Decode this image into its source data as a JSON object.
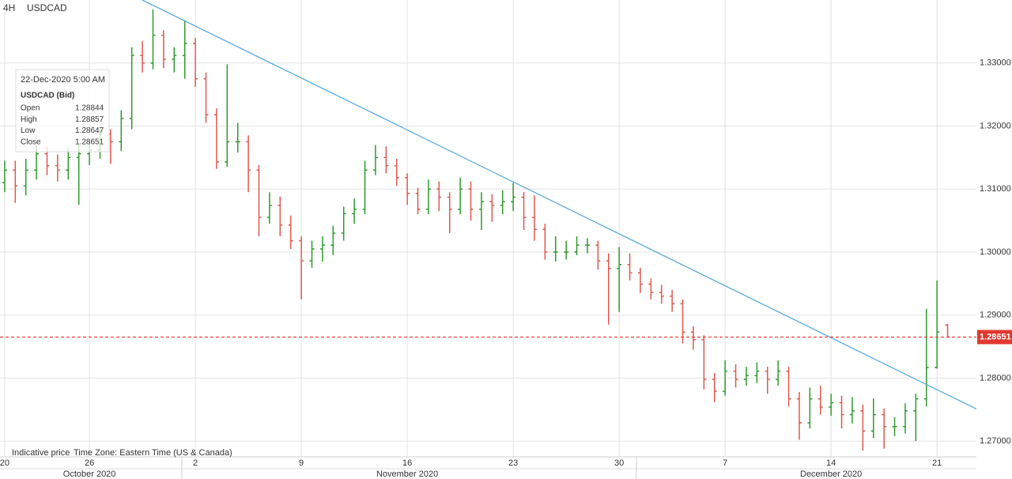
{
  "header": {
    "timeframe": "4H",
    "symbol": "USDCAD"
  },
  "tooltip": {
    "date": "22-Dec-2020 5:00 AM",
    "title": "USDCAD (Bid)",
    "rows": [
      {
        "label": "Open",
        "value": 1.28844
      },
      {
        "label": "High",
        "value": 1.28857
      },
      {
        "label": "Low",
        "value": 1.28647
      },
      {
        "label": "Close",
        "value": 1.28651
      }
    ]
  },
  "footer": {
    "note": "Indicative price",
    "timezone": "Time Zone: Eastern Time (US & Canada)"
  },
  "chart_data": {
    "type": "ohlc",
    "x": [
      0,
      0.5,
      1,
      1.5,
      2,
      2.5,
      3,
      3.5,
      4,
      4.5,
      5,
      5.5,
      6,
      6.5,
      7,
      7.5,
      8,
      8.5,
      9,
      9.5,
      10,
      10.5,
      11,
      11.5,
      12,
      12.5,
      13,
      13.5,
      14,
      14.5,
      15,
      15.5,
      16,
      16.5,
      17,
      17.5,
      18,
      18.5,
      19,
      19.5,
      20,
      20.5,
      21,
      21.5,
      22,
      22.5,
      23,
      23.5,
      24,
      24.5,
      25,
      25.5,
      26,
      26.5,
      27,
      27.5,
      28,
      28.5,
      29,
      29.5,
      30,
      30.5,
      31,
      31.5,
      32,
      32.5,
      33,
      33.5,
      34,
      34.5,
      35,
      35.5,
      36,
      36.5,
      37,
      37.5,
      38,
      38.5,
      39,
      39.5,
      40,
      40.5,
      41,
      41.5,
      42,
      42.5,
      43,
      43.5,
      44,
      44.5
    ],
    "ohlc": [
      [
        1.311,
        1.3145,
        1.3095,
        1.313
      ],
      [
        1.313,
        1.3145,
        1.3078,
        1.3105
      ],
      [
        1.3105,
        1.3148,
        1.309,
        1.313
      ],
      [
        1.313,
        1.317,
        1.3115,
        1.3156
      ],
      [
        1.3156,
        1.3168,
        1.3122,
        1.3137
      ],
      [
        1.3137,
        1.3155,
        1.3112,
        1.313
      ],
      [
        1.313,
        1.3165,
        1.3115,
        1.315
      ],
      [
        1.315,
        1.3172,
        1.3075,
        1.3156
      ],
      [
        1.3156,
        1.3178,
        1.3138,
        1.3162
      ],
      [
        1.3162,
        1.3198,
        1.3148,
        1.3187
      ],
      [
        1.3187,
        1.3195,
        1.314,
        1.3175
      ],
      [
        1.3175,
        1.3225,
        1.316,
        1.3212
      ],
      [
        1.3212,
        1.3325,
        1.3195,
        1.3312
      ],
      [
        1.3312,
        1.3335,
        1.3285,
        1.33
      ],
      [
        1.33,
        1.3385,
        1.329,
        1.3344
      ],
      [
        1.3344,
        1.3352,
        1.3292,
        1.3306
      ],
      [
        1.3306,
        1.3325,
        1.3285,
        1.3312
      ],
      [
        1.3312,
        1.3368,
        1.3275,
        1.3331
      ],
      [
        1.3331,
        1.334,
        1.3262,
        1.3275
      ],
      [
        1.3275,
        1.3285,
        1.3205,
        1.3218
      ],
      [
        1.3218,
        1.3228,
        1.3132,
        1.3143
      ],
      [
        1.3143,
        1.3298,
        1.3135,
        1.3175
      ],
      [
        1.3175,
        1.3205,
        1.3158,
        1.3175
      ],
      [
        1.3175,
        1.3185,
        1.3095,
        1.313
      ],
      [
        1.313,
        1.3138,
        1.3025,
        1.3055
      ],
      [
        1.3055,
        1.3095,
        1.3045,
        1.3074
      ],
      [
        1.3074,
        1.3088,
        1.3025,
        1.3043
      ],
      [
        1.3043,
        1.3058,
        1.3005,
        1.3018
      ],
      [
        1.3018,
        1.3025,
        1.2925,
        1.2986
      ],
      [
        1.2986,
        1.3018,
        1.2975,
        1.3005
      ],
      [
        1.3005,
        1.3025,
        1.2985,
        1.3011
      ],
      [
        1.3011,
        1.3042,
        1.2995,
        1.303
      ],
      [
        1.303,
        1.3072,
        1.3018,
        1.3061
      ],
      [
        1.3061,
        1.3085,
        1.3045,
        1.3068
      ],
      [
        1.3068,
        1.3145,
        1.306,
        1.313
      ],
      [
        1.313,
        1.317,
        1.3122,
        1.315
      ],
      [
        1.315,
        1.3168,
        1.3125,
        1.3137
      ],
      [
        1.3137,
        1.3148,
        1.3105,
        1.3118
      ],
      [
        1.3118,
        1.3125,
        1.3075,
        1.3093
      ],
      [
        1.3093,
        1.3102,
        1.306,
        1.3068
      ],
      [
        1.3068,
        1.3115,
        1.306,
        1.31
      ],
      [
        1.31,
        1.3112,
        1.3065,
        1.3087
      ],
      [
        1.3087,
        1.3095,
        1.303,
        1.3068
      ],
      [
        1.3068,
        1.3118,
        1.306,
        1.31
      ],
      [
        1.31,
        1.3112,
        1.305,
        1.3068
      ],
      [
        1.3068,
        1.3095,
        1.3035,
        1.308
      ],
      [
        1.308,
        1.3092,
        1.3048,
        1.3074
      ],
      [
        1.3074,
        1.3098,
        1.306,
        1.308
      ],
      [
        1.308,
        1.311,
        1.3065,
        1.3087
      ],
      [
        1.3087,
        1.3095,
        1.3035,
        1.3055
      ],
      [
        1.3055,
        1.309,
        1.3018,
        1.3036
      ],
      [
        1.3036,
        1.3045,
        1.2988,
        1.3
      ],
      [
        1.3,
        1.3025,
        1.2985,
        1.3
      ],
      [
        1.3,
        1.3018,
        1.2988,
        1.3
      ],
      [
        1.3,
        1.3025,
        1.2995,
        1.3011
      ],
      [
        1.3011,
        1.3022,
        1.2998,
        1.3011
      ],
      [
        1.3011,
        1.3018,
        1.2972,
        1.2986
      ],
      [
        1.2986,
        1.2998,
        1.2885,
        1.2974
      ],
      [
        1.2974,
        1.3008,
        1.2905,
        1.298
      ],
      [
        1.298,
        1.2998,
        1.2955,
        1.2967
      ],
      [
        1.2967,
        1.2975,
        1.2935,
        1.2949
      ],
      [
        1.2949,
        1.2958,
        1.2925,
        1.2936
      ],
      [
        1.2936,
        1.2948,
        1.2918,
        1.293
      ],
      [
        1.293,
        1.294,
        1.2905,
        1.2918
      ],
      [
        1.2918,
        1.2925,
        1.2855,
        1.2873
      ],
      [
        1.2873,
        1.2882,
        1.2845,
        1.2861
      ],
      [
        1.2861,
        1.2868,
        1.2782,
        1.2798
      ],
      [
        1.2798,
        1.2808,
        1.2762,
        1.2779
      ],
      [
        1.2779,
        1.2828,
        1.2772,
        1.2811
      ],
      [
        1.2811,
        1.2822,
        1.2785,
        1.2798
      ],
      [
        1.2798,
        1.2818,
        1.2788,
        1.2804
      ],
      [
        1.2804,
        1.2825,
        1.2792,
        1.2811
      ],
      [
        1.2811,
        1.2818,
        1.2775,
        1.2798
      ],
      [
        1.2798,
        1.2828,
        1.2788,
        1.2811
      ],
      [
        1.2811,
        1.2818,
        1.2755,
        1.2767
      ],
      [
        1.2767,
        1.2778,
        1.2702,
        1.2729
      ],
      [
        1.2729,
        1.2785,
        1.272,
        1.2767
      ],
      [
        1.2767,
        1.2788,
        1.2742,
        1.2754
      ],
      [
        1.2754,
        1.2775,
        1.274,
        1.2761
      ],
      [
        1.2761,
        1.2772,
        1.272,
        1.2742
      ],
      [
        1.2742,
        1.277,
        1.2728,
        1.2748
      ],
      [
        1.2748,
        1.2758,
        1.2685,
        1.2716
      ],
      [
        1.2716,
        1.2768,
        1.2705,
        1.2742
      ],
      [
        1.2742,
        1.2752,
        1.2688,
        1.2723
      ],
      [
        1.2723,
        1.2738,
        1.2708,
        1.2723
      ],
      [
        1.2723,
        1.276,
        1.2712,
        1.2748
      ],
      [
        1.2748,
        1.2775,
        1.27,
        1.2767
      ],
      [
        1.2767,
        1.291,
        1.2755,
        1.2817
      ],
      [
        1.2817,
        1.2955,
        1.2815,
        1.2873
      ],
      [
        1.28844,
        1.28857,
        1.28647,
        1.28651
      ]
    ],
    "up_color": "#2e9a2e",
    "down_color": "#e0574f",
    "xlim": [
      -0.22,
      45.86
    ],
    "ylim": [
      1.2675,
      1.34
    ],
    "yticks": [
      {
        "value": 1.27,
        "label": "1.27000"
      },
      {
        "value": 1.28,
        "label": "1.28000"
      },
      {
        "value": 1.29,
        "label": "1.29000"
      },
      {
        "value": 1.3,
        "label": "1.30000"
      },
      {
        "value": 1.31,
        "label": "1.31000"
      },
      {
        "value": 1.32,
        "label": "1.32000"
      },
      {
        "value": 1.33,
        "label": "1.33000"
      }
    ],
    "xticks": [
      {
        "value": 0,
        "label": "20"
      },
      {
        "value": 4,
        "label": "26"
      },
      {
        "value": 9,
        "label": "2"
      },
      {
        "value": 14,
        "label": "9"
      },
      {
        "value": 19,
        "label": "16"
      },
      {
        "value": 24,
        "label": "23"
      },
      {
        "value": 29,
        "label": "30"
      },
      {
        "value": 34,
        "label": "7"
      },
      {
        "value": 39,
        "label": "14"
      },
      {
        "value": 44,
        "label": "21"
      }
    ],
    "month_labels": [
      {
        "value": 4,
        "label": "October 2020"
      },
      {
        "value": 19,
        "label": "November 2020"
      },
      {
        "value": 39,
        "label": "December 2020"
      }
    ],
    "grid": true,
    "trendline": {
      "x": [
        6.49,
        45.86
      ],
      "y": [
        1.34,
        1.2751
      ],
      "color": "#5aaae0"
    },
    "last_price": {
      "value": 1.28651,
      "color": "#e0392f"
    }
  }
}
